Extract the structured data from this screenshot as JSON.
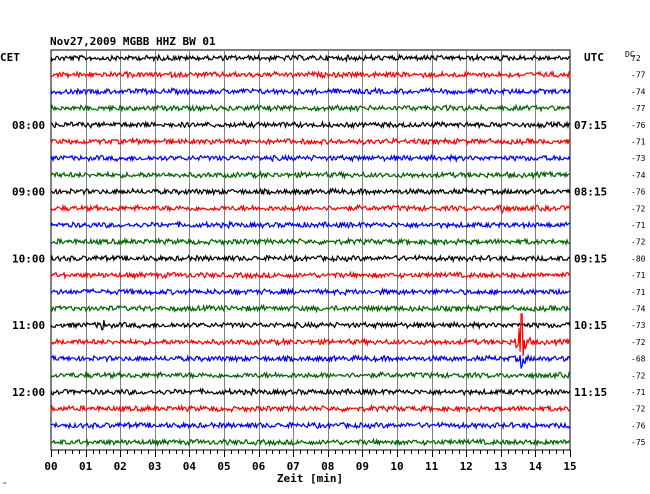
{
  "chart_data": {
    "type": "line",
    "title": "Nov27,2009   MGBB HHZ BW 01",
    "xlabel": "Zeit [min]",
    "left_axis_label": "CET",
    "right_axis_label": "UTC",
    "dc_header": "DC",
    "xlim": [
      0,
      15
    ],
    "x_ticks": [
      "00",
      "01",
      "02",
      "03",
      "04",
      "05",
      "06",
      "07",
      "08",
      "09",
      "10",
      "11",
      "12",
      "13",
      "14",
      "15"
    ],
    "grid": true,
    "row_count": 24,
    "trace_colors": [
      "#000000",
      "#ff0000",
      "#0000ff",
      "#006400"
    ],
    "left_time_labels": [
      {
        "row": 4,
        "text": "08:00"
      },
      {
        "row": 8,
        "text": "09:00"
      },
      {
        "row": 12,
        "text": "10:00"
      },
      {
        "row": 16,
        "text": "11:00"
      },
      {
        "row": 20,
        "text": "12:00"
      }
    ],
    "right_time_labels": [
      {
        "row": 4,
        "text": "07:15"
      },
      {
        "row": 8,
        "text": "08:15"
      },
      {
        "row": 12,
        "text": "09:15"
      },
      {
        "row": 16,
        "text": "10:15"
      },
      {
        "row": 20,
        "text": "11:15"
      }
    ],
    "dc_values": [
      "72",
      "-77",
      "-74",
      "-77",
      "-76",
      "-71",
      "-73",
      "-74",
      "-76",
      "-72",
      "-71",
      "-72",
      "-80",
      "-71",
      "-71",
      "-74",
      "-73",
      "-72",
      "-68",
      "-72",
      "-71",
      "-72",
      "-76",
      "-75"
    ],
    "events": [
      {
        "row": 9,
        "minute": 13.0,
        "amplitude": 7
      },
      {
        "row": 16,
        "minute": 1.5,
        "amplitude": 5
      },
      {
        "row": 17,
        "minute": 13.6,
        "amplitude": 45
      },
      {
        "row": 18,
        "minute": 13.6,
        "amplitude": 10
      }
    ]
  }
}
